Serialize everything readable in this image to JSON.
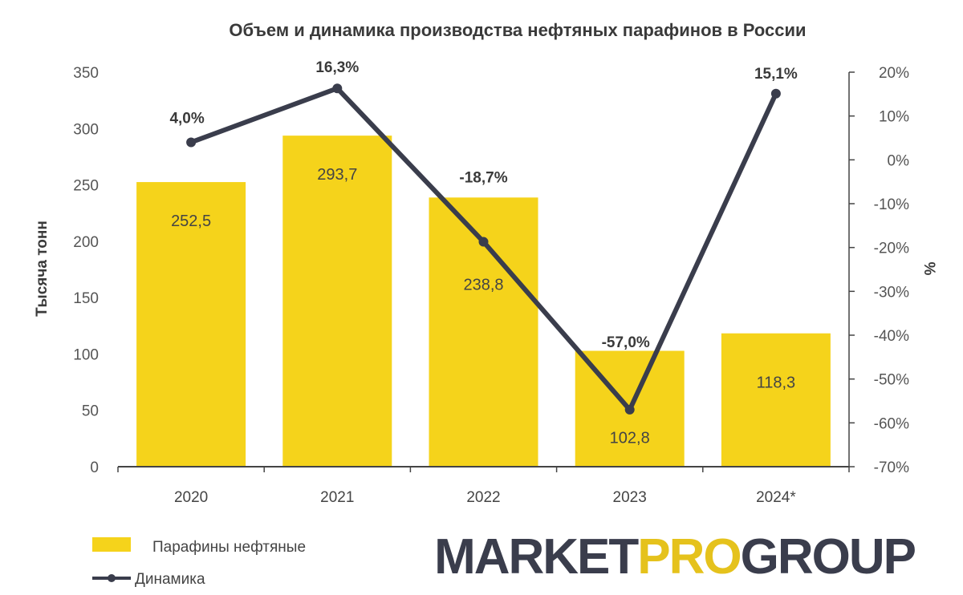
{
  "chart_data": {
    "type": "bar",
    "title": "Объем и динамика производства  нефтяных парафинов в России",
    "categories": [
      "2020",
      "2021",
      "2022",
      "2023",
      "2024*"
    ],
    "ylabel": "Тысяча тонн",
    "y2label": "%",
    "ylim": [
      0,
      350
    ],
    "y2lim": [
      -70,
      20
    ],
    "y_ticks": [
      "350",
      "300",
      "250",
      "200",
      "150",
      "100",
      "50",
      "0"
    ],
    "y2_ticks": [
      "20%",
      "10%",
      "0%",
      "-10%",
      "-20%",
      "-30%",
      "-40%",
      "-50%",
      "-60%",
      "-70%"
    ],
    "series": [
      {
        "name": "Парафины нефтяные",
        "type": "bar",
        "axis": "left",
        "values": [
          252.5,
          293.7,
          238.8,
          102.8,
          118.3
        ],
        "labels": [
          "252,5",
          "293,7",
          "238,8",
          "102,8",
          "118,3"
        ],
        "color": "#F5D31B"
      },
      {
        "name": "Динамика",
        "type": "line",
        "axis": "right",
        "values": [
          4.0,
          16.3,
          -18.7,
          -57.0,
          15.1
        ],
        "labels": [
          "4,0%",
          "16,3%",
          "-18,7%",
          "-57,0%",
          "15,1%"
        ],
        "color": "#3A3D4C"
      }
    ],
    "grid": false,
    "legend_position": "bottom-left"
  },
  "logo": {
    "parts": [
      "MARKET",
      "PRO",
      "GROUP"
    ],
    "colors": [
      "#3A3D4C",
      "#E5C21C",
      "#3A3D4C"
    ]
  }
}
